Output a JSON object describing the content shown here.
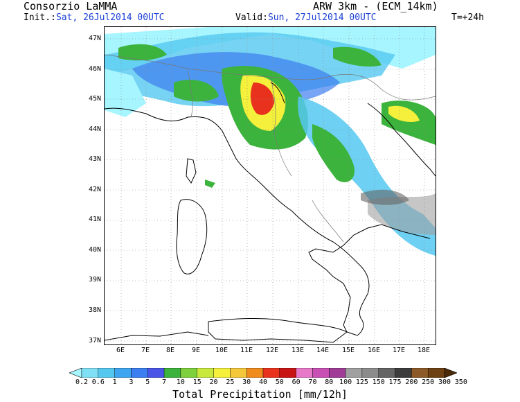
{
  "header": {
    "organization": "Consorzio LaMMA",
    "model": "ARW 3km - (ECM_14km)",
    "init_label": "Init.:",
    "init_value": "Sat, 26Jul2014 00UTC",
    "valid_label": "Valid:",
    "valid_value": "Sun, 27Jul2014 00UTC",
    "step": "T=+24h"
  },
  "axes": {
    "lat_labels": [
      "47N",
      "46N",
      "45N",
      "44N",
      "43N",
      "42N",
      "41N",
      "40N",
      "39N",
      "38N",
      "37N"
    ],
    "lon_labels": [
      "6E",
      "7E",
      "8E",
      "9E",
      "10E",
      "11E",
      "12E",
      "13E",
      "14E",
      "15E",
      "16E",
      "17E",
      "18E"
    ],
    "lat_range": [
      36.5,
      47.2
    ],
    "lon_range": [
      5.3,
      18.5
    ],
    "grid": true
  },
  "colorbar": {
    "title": "Total Precipitation [mm/12h]",
    "thresholds": [
      "0.2",
      "0.6",
      "1",
      "3",
      "5",
      "7",
      "10",
      "15",
      "20",
      "25",
      "30",
      "40",
      "50",
      "60",
      "70",
      "80",
      "100",
      "125",
      "150",
      "175",
      "200",
      "250",
      "300",
      "350"
    ],
    "colors": [
      "#a6f5ff",
      "#7fe0f5",
      "#55c8f0",
      "#3ea6f0",
      "#3d7ef0",
      "#4a55e8",
      "#3cb33c",
      "#7ed13c",
      "#c8e83c",
      "#f5f03c",
      "#f5c83c",
      "#f08c1e",
      "#e8321e",
      "#c81414",
      "#e878c8",
      "#c850b4",
      "#a03c96",
      "#a0a0a0",
      "#8c8c8c",
      "#646464",
      "#3c3c3c",
      "#8c5a28",
      "#6e4114",
      "#4b2a0a"
    ]
  }
}
